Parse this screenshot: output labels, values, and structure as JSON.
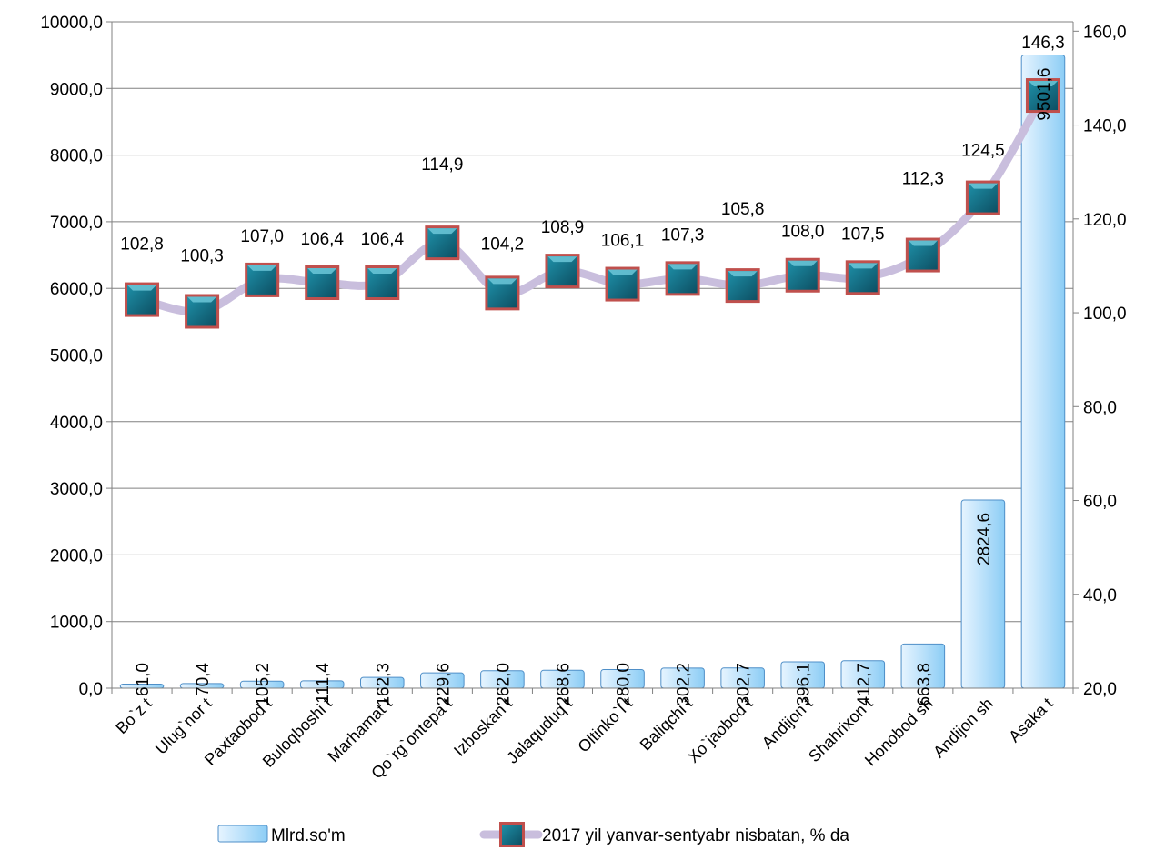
{
  "chart_data": {
    "type": "bar",
    "categories": [
      "Bo`z t",
      "Ulug`nor t",
      "Paxtaobod t",
      "Buloqboshi t",
      "Marhamat t",
      "Qo`rg`ontepa t",
      "Izboskan t",
      "Jalaquduq t",
      "Oltinko`l t",
      "Baliqchi t",
      "Xo`jaobod t",
      "Andijon t",
      "Shahrixon t",
      "Honobod sh",
      "Andijon sh",
      "Asaka t"
    ],
    "series": [
      {
        "name": "Mlrd.so'm",
        "type": "bar",
        "axis": "left",
        "values": [
          61.0,
          70.4,
          105.2,
          111.4,
          162.3,
          229.6,
          262.0,
          268.6,
          280.0,
          302.2,
          302.7,
          396.1,
          412.7,
          663.8,
          2824.6,
          9501.6
        ],
        "labels": [
          "61,0",
          "70,4",
          "105,2",
          "111,4",
          "162,3",
          "229,6",
          "262,0",
          "268,6",
          "280,0",
          "302,2",
          "302,7",
          "396,1",
          "412,7",
          "663,8",
          "2824,6",
          "9501,6"
        ]
      },
      {
        "name": "2017 yil yanvar-sentyabr nisbatan, % da",
        "type": "line",
        "axis": "right",
        "values": [
          102.8,
          100.3,
          107.0,
          106.4,
          106.4,
          114.9,
          104.2,
          108.9,
          106.1,
          107.3,
          105.8,
          108.0,
          107.5,
          112.3,
          124.5,
          146.3
        ],
        "labels": [
          "102,8",
          "100,3",
          "107,0",
          "106,4",
          "106,4",
          "114,9",
          "104,2",
          "108,9",
          "106,1",
          "107,3",
          "105,8",
          "108,0",
          "107,5",
          "112,3",
          "124,5",
          "146,3"
        ]
      }
    ],
    "y_left": {
      "ylim": [
        0,
        10000
      ],
      "ticks": [
        "0,0",
        "1000,0",
        "2000,0",
        "3000,0",
        "4000,0",
        "5000,0",
        "6000,0",
        "7000,0",
        "8000,0",
        "9000,0",
        "10000,0"
      ]
    },
    "y_right": {
      "ylim": [
        20,
        162
      ],
      "tick_values": [
        20,
        40,
        60,
        80,
        100,
        120,
        140,
        160
      ],
      "ticks": [
        "20,0",
        "40,0",
        "60,0",
        "80,0",
        "100,0",
        "120,0",
        "140,0",
        "160,0"
      ]
    },
    "grid": true,
    "legend_position": "bottom",
    "colors": {
      "bar_fill_light": "#e6f4ff",
      "bar_fill_dark": "#8ccdf5",
      "bar_stroke": "#4f8fc8",
      "line": "#c9bedd",
      "marker_fill": "#1e8fa7",
      "marker_dark": "#0d4f63",
      "marker_border": "#c0504d",
      "grid": "#808080"
    }
  }
}
